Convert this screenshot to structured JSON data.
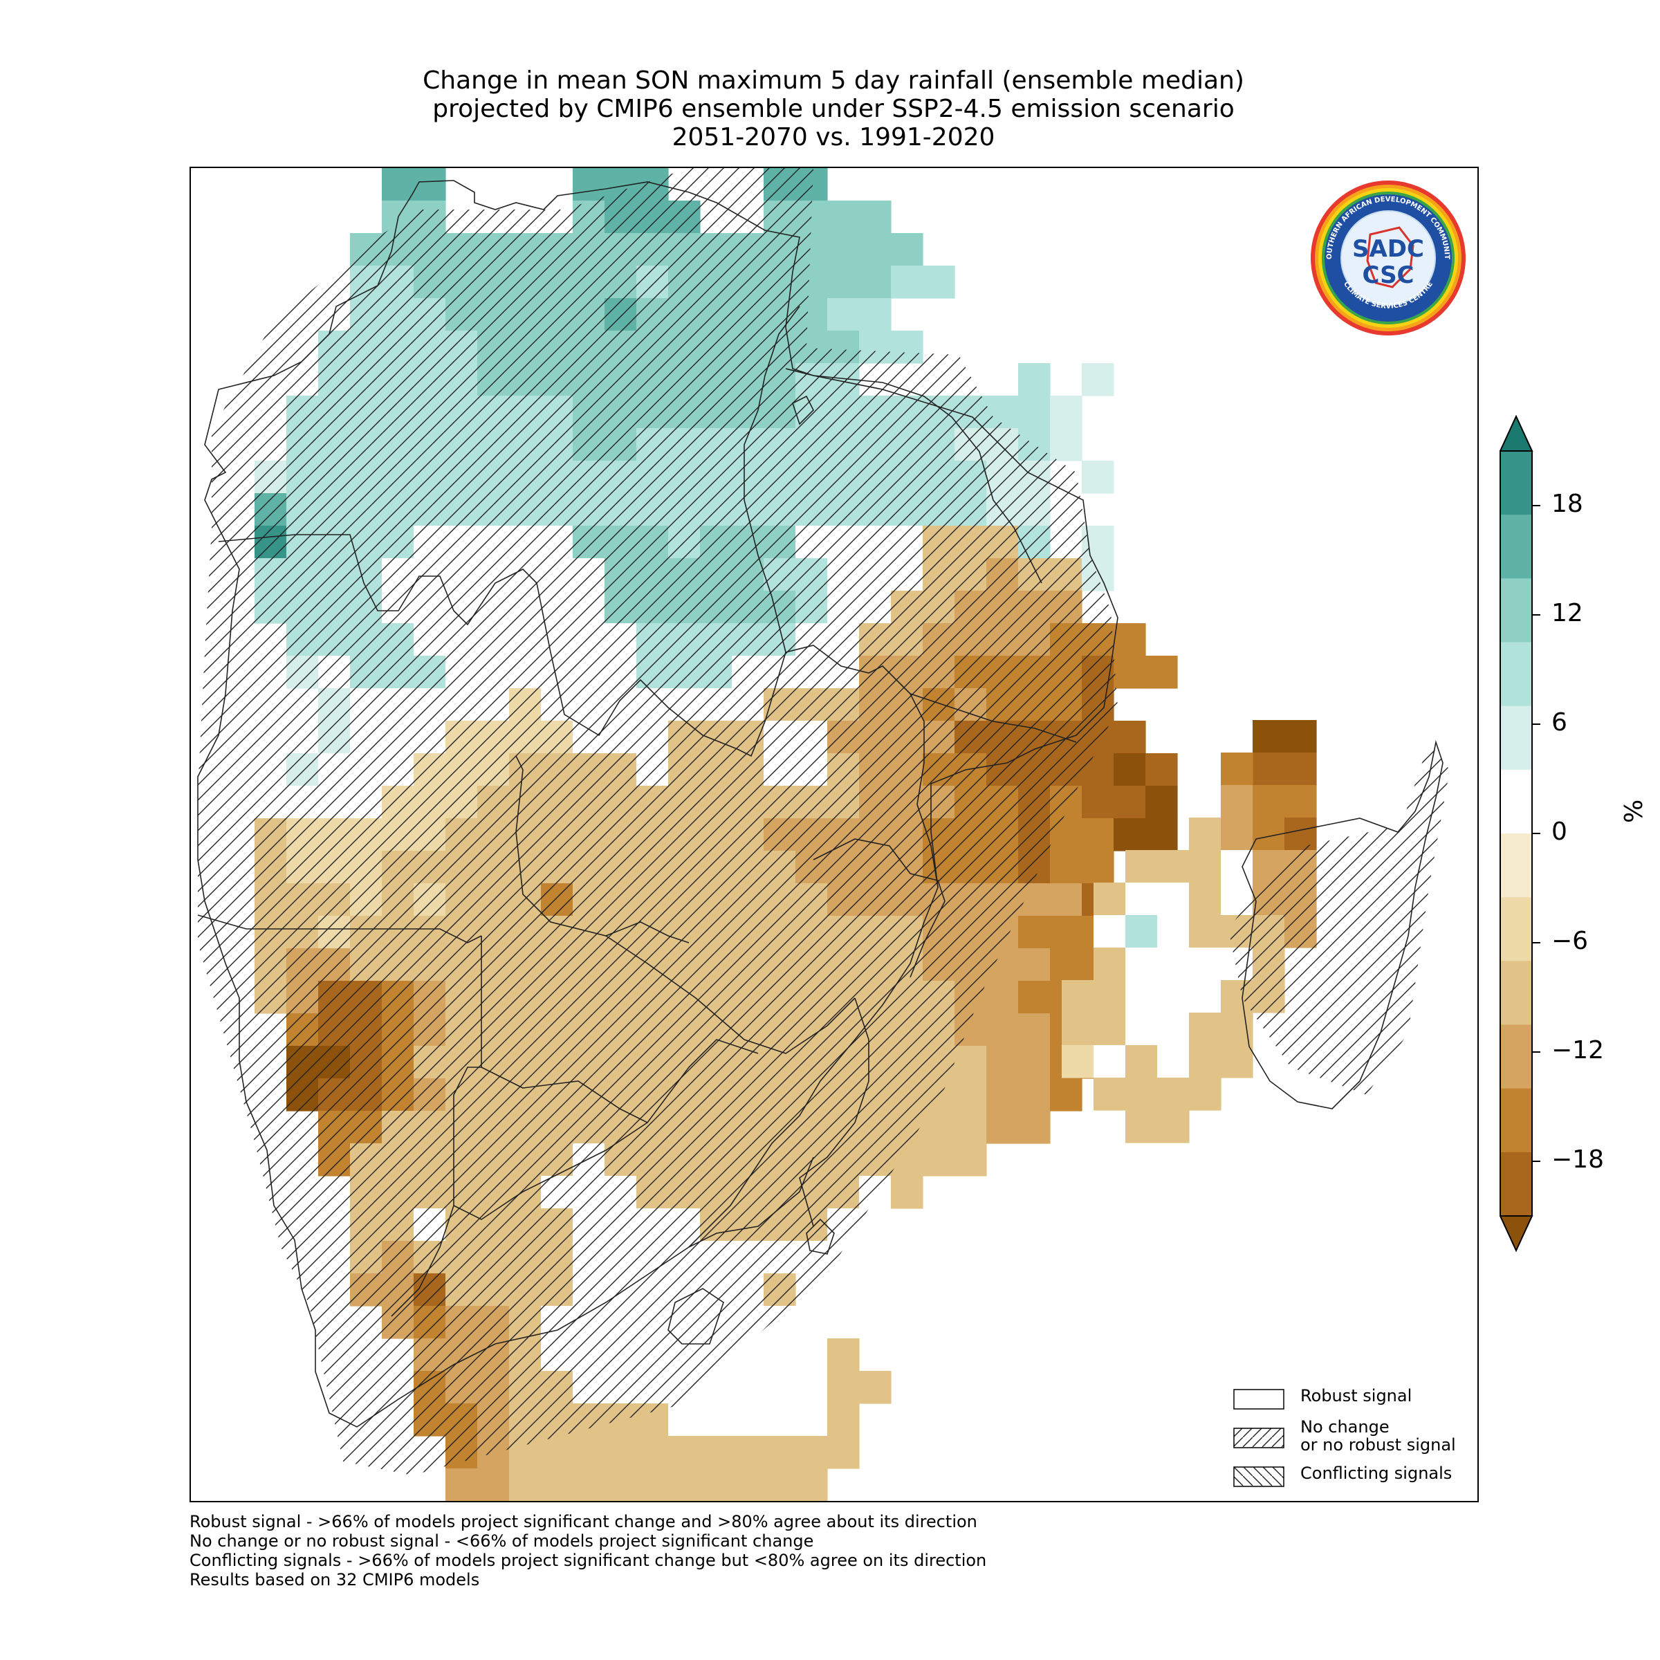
{
  "title": {
    "line1": "Change in mean SON maximum 5 day rainfall (ensemble median)",
    "line2": "projected by CMIP6 ensemble under SSP2-4.5 emission scenario",
    "line3": "2051-2070 vs. 1991-2020"
  },
  "legend": {
    "robust": "Robust signal",
    "no_change_1": "No change",
    "no_change_2": "or no robust signal",
    "conflicting": "Conflicting signals"
  },
  "colorbar": {
    "unit": "%",
    "ticks": [
      "18",
      "12",
      "6",
      "0",
      "−6",
      "−12",
      "−18"
    ],
    "tick_values": [
      18,
      12,
      6,
      0,
      -6,
      -12,
      -18
    ],
    "range": [
      -21,
      21
    ],
    "extend": "both",
    "colors": [
      "#8c510a",
      "#a8671c",
      "#c1832f",
      "#d4a460",
      "#e2c387",
      "#eed9a8",
      "#f6ebcf",
      "#ffffff",
      "#d6efeb",
      "#b2e2dc",
      "#8ed1c4",
      "#5fb3a6",
      "#379489",
      "#1b7a6f"
    ]
  },
  "footnotes": {
    "line1": "Robust signal - >66% of models project significant change and >80% agree about its direction",
    "line2": "No change or no robust signal - <66% of models project significant change",
    "line3": "Conflicting signals - >66% of models project significant change but <80% agree on its direction",
    "line4": "Results based on 32 CMIP6 models"
  },
  "logo": {
    "ring_text_top": "SOUTHERN AFRICAN DEVELOPMENT COMMUNITY",
    "ring_text_bottom": "CLIMATE SERVICES CENTRE",
    "mark_1": "SADC",
    "mark_2": "CSC"
  }
}
